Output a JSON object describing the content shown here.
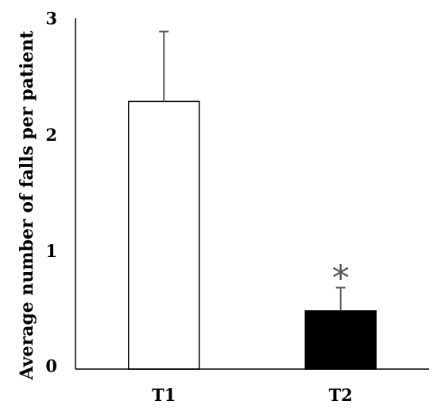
{
  "chart_data": {
    "type": "bar",
    "title": "",
    "xlabel": "",
    "ylabel": "Average number of falls per patient",
    "ylim": [
      0,
      3
    ],
    "yticks": [
      "0",
      "1",
      "2",
      "3"
    ],
    "categories": [
      "T1",
      "T2"
    ],
    "values": [
      2.3,
      0.5
    ],
    "error_upper": [
      0.6,
      0.2
    ],
    "bar_fill": [
      "#ffffff",
      "#000000"
    ],
    "bar_stroke": "#000000",
    "error_color": "#595959",
    "annotations": [
      {
        "category": "T2",
        "text": "*"
      }
    ],
    "grid": false,
    "legend": "none"
  }
}
